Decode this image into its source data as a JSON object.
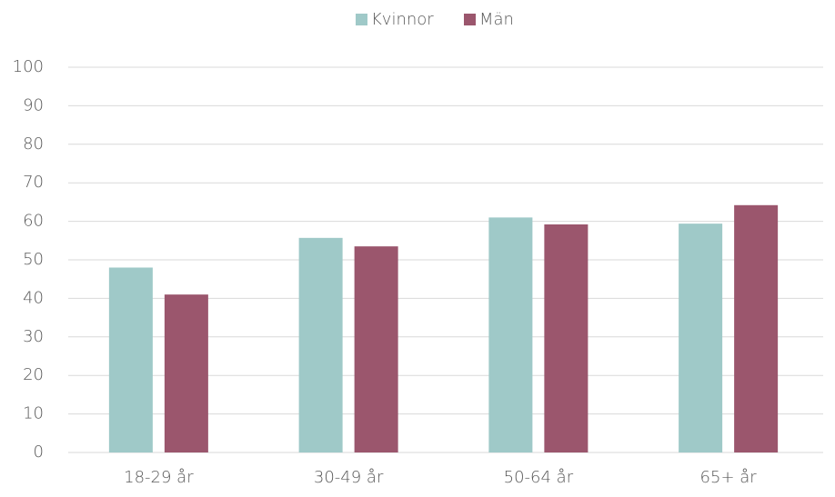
{
  "chart_data": {
    "type": "bar",
    "categories": [
      "18-29 år",
      "30-49 år",
      "50-64 år",
      "65+ år"
    ],
    "series": [
      {
        "name": "Kvinnor",
        "color": "#9fc9c8",
        "values": [
          48,
          55.7,
          61,
          59.4
        ]
      },
      {
        "name": "Män",
        "color": "#9b566d",
        "values": [
          41,
          53.5,
          59.2,
          64.2
        ]
      }
    ],
    "ylim": [
      0,
      100
    ],
    "yticks": [
      0,
      10,
      20,
      30,
      40,
      50,
      60,
      70,
      80,
      90,
      100
    ],
    "grid": true,
    "legend": "top"
  }
}
